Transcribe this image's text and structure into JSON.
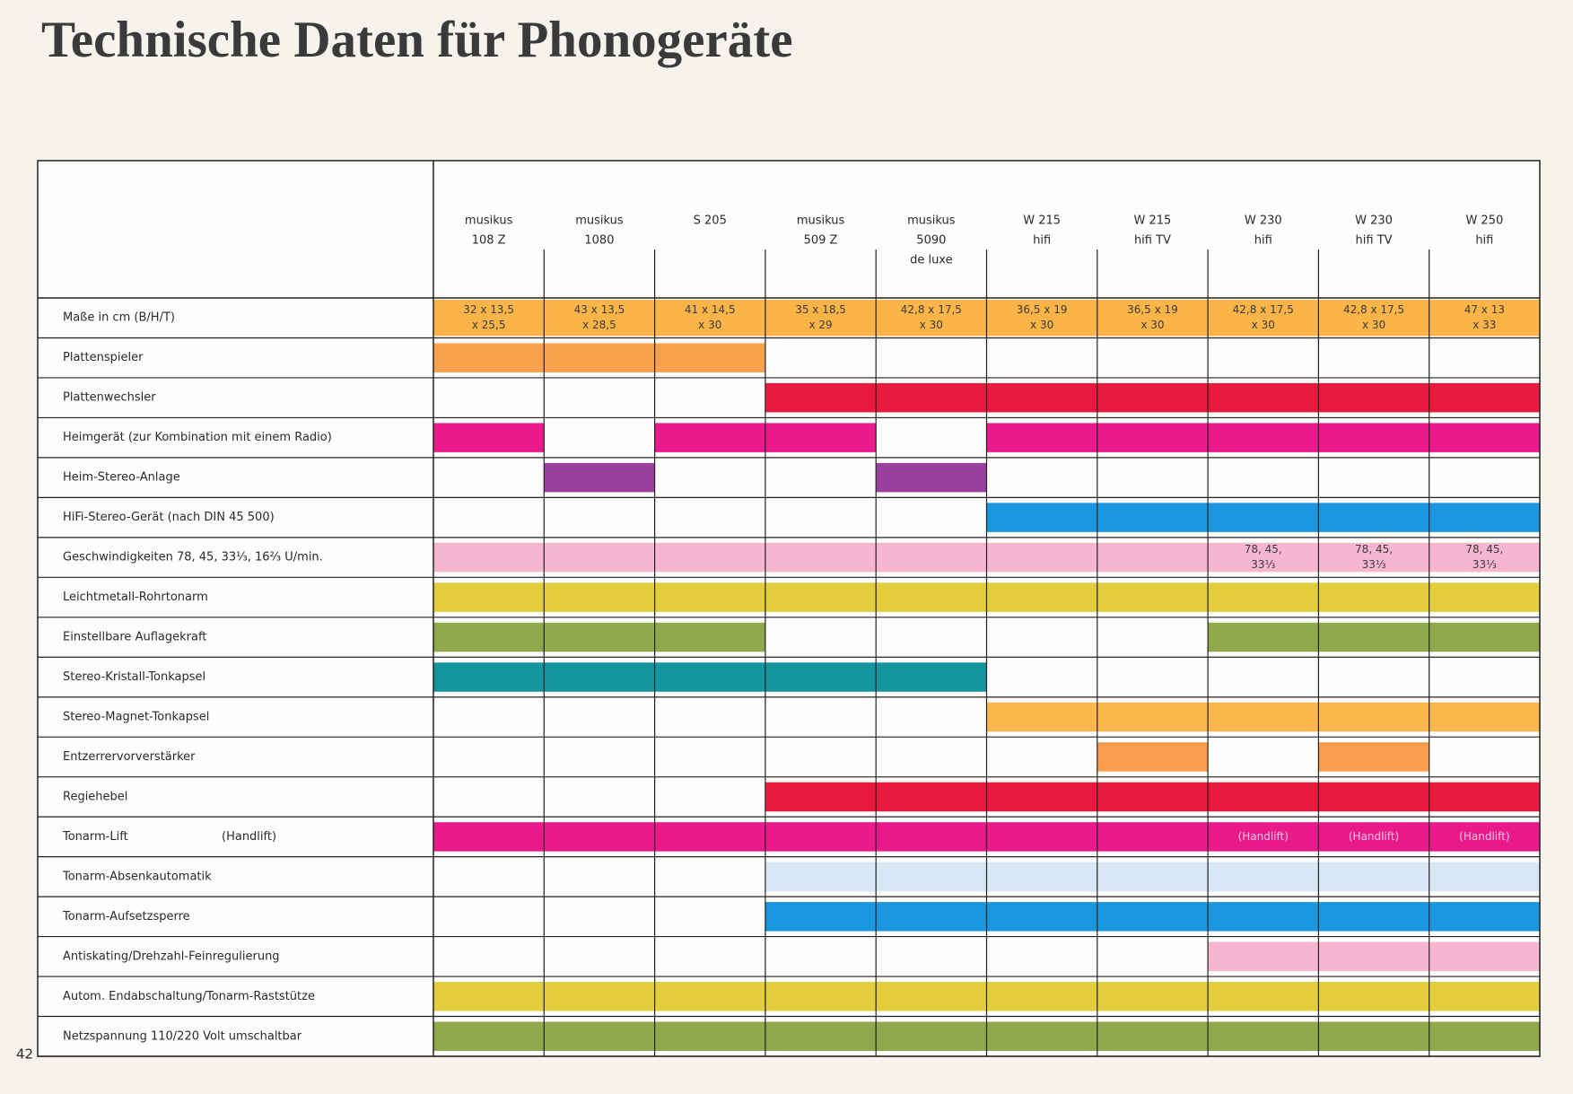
{
  "header": {
    "title": "Technische Daten für Phonogeräte",
    "page_number": "42"
  },
  "table": {
    "columns": [
      [
        "musikus",
        "108 Z"
      ],
      [
        "musikus",
        "1080"
      ],
      [
        "S 205"
      ],
      [
        "musikus",
        "509 Z"
      ],
      [
        "musikus",
        "5090",
        "de luxe"
      ],
      [
        "W 215",
        "hifi"
      ],
      [
        "W 215",
        "hifi TV"
      ],
      [
        "W 230",
        "hifi"
      ],
      [
        "W 230",
        "hifi TV"
      ],
      [
        "W 250",
        "hifi"
      ]
    ],
    "rows": [
      {
        "label": "Maße in cm (B/H/T)",
        "color": "#fbb448",
        "cells": [
          [
            "32 x 13,5",
            "x 25,5"
          ],
          [
            "43 x 13,5",
            "x 28,5"
          ],
          [
            "41 x 14,5",
            "x 30"
          ],
          [
            "35 x 18,5",
            "x 29"
          ],
          [
            "42,8 x 17,5",
            "x 30"
          ],
          [
            "36,5 x 19",
            "x 30"
          ],
          [
            "36,5 x 19",
            "x 30"
          ],
          [
            "42,8 x 17,5",
            "x 30"
          ],
          [
            "42,8 x 17,5",
            "x 30"
          ],
          [
            "47 x 13",
            "x 33"
          ]
        ]
      },
      {
        "label": "Plattenspieler",
        "color": "#f9a14c",
        "cells": [
          true,
          true,
          true,
          false,
          false,
          false,
          false,
          false,
          false,
          false
        ]
      },
      {
        "label": "Plattenwechsler",
        "color": "#ea1a3f",
        "cells": [
          false,
          false,
          false,
          true,
          true,
          true,
          true,
          true,
          true,
          true
        ]
      },
      {
        "label": "Heimgerät (zur Kombination mit einem Radio)",
        "color": "#ea1a8c",
        "cells": [
          true,
          false,
          true,
          true,
          false,
          true,
          true,
          true,
          true,
          true
        ]
      },
      {
        "label": "Heim-Stereo-Anlage",
        "color": "#9a3f9e",
        "cells": [
          false,
          true,
          false,
          false,
          true,
          false,
          false,
          false,
          false,
          false
        ]
      },
      {
        "label": "HiFi-Stereo-Gerät (nach DIN 45 500)",
        "color": "#1b97e0",
        "cells": [
          false,
          false,
          false,
          false,
          false,
          true,
          true,
          true,
          true,
          true
        ]
      },
      {
        "label": "Geschwindigkeiten 78, 45, 33⅓, 16⅔ U/min.",
        "color": "#f7b6d0",
        "cells": [
          true,
          true,
          true,
          true,
          true,
          true,
          true,
          [
            "78, 45,",
            "33⅓"
          ],
          [
            "78, 45,",
            "33⅓"
          ],
          [
            "78, 45,",
            "33⅓"
          ]
        ]
      },
      {
        "label": "Leichtmetall-Rohrtonarm",
        "color": "#e3cd3c",
        "cells": [
          true,
          true,
          true,
          true,
          true,
          true,
          true,
          true,
          true,
          true
        ]
      },
      {
        "label": "Einstellbare Auflagekraft",
        "color": "#8ea84b",
        "cells": [
          true,
          true,
          true,
          false,
          false,
          false,
          false,
          true,
          true,
          true
        ]
      },
      {
        "label": "Stereo-Kristall-Tonkapsel",
        "color": "#14949f",
        "cells": [
          true,
          true,
          true,
          true,
          true,
          false,
          false,
          false,
          false,
          false
        ]
      },
      {
        "label": "Stereo-Magnet-Tonkapsel",
        "color": "#fbb64c",
        "cells": [
          false,
          false,
          false,
          false,
          false,
          true,
          true,
          true,
          true,
          true
        ]
      },
      {
        "label": "Entzerrervorverstärker",
        "color": "#f99c4c",
        "cells": [
          false,
          false,
          false,
          false,
          false,
          false,
          true,
          false,
          true,
          false
        ]
      },
      {
        "label": "Regiehebel",
        "color": "#ea1a3f",
        "cells": [
          false,
          false,
          false,
          true,
          true,
          true,
          true,
          true,
          true,
          true
        ]
      },
      {
        "label": "Tonarm-Lift",
        "note": "(Handlift)",
        "color": "#ea1a8c",
        "cells": [
          true,
          true,
          true,
          true,
          true,
          true,
          true,
          [
            "(Handlift)"
          ],
          [
            "(Handlift)"
          ],
          [
            "(Handlift)"
          ]
        ]
      },
      {
        "label": "Tonarm-Absenkautomatik",
        "color": "#d8e7f5",
        "cells": [
          false,
          false,
          false,
          true,
          true,
          true,
          true,
          true,
          true,
          true
        ]
      },
      {
        "label": "Tonarm-Aufsetzsperre",
        "color": "#1b97e0",
        "cells": [
          false,
          false,
          false,
          true,
          true,
          true,
          true,
          true,
          true,
          true
        ]
      },
      {
        "label": "Antiskating/Drehzahl-Feinregulierung",
        "color": "#f7b6d0",
        "cells": [
          false,
          false,
          false,
          false,
          false,
          false,
          false,
          true,
          true,
          true
        ]
      },
      {
        "label": "Autom. Endabschaltung/Tonarm-Raststütze",
        "color": "#e3cd3c",
        "cells": [
          true,
          true,
          true,
          true,
          true,
          true,
          true,
          true,
          true,
          true
        ]
      },
      {
        "label": "Netzspannung 110/220 Volt umschaltbar",
        "color": "#8ea84b",
        "cells": [
          true,
          true,
          true,
          true,
          true,
          true,
          true,
          true,
          true,
          true
        ]
      }
    ]
  }
}
